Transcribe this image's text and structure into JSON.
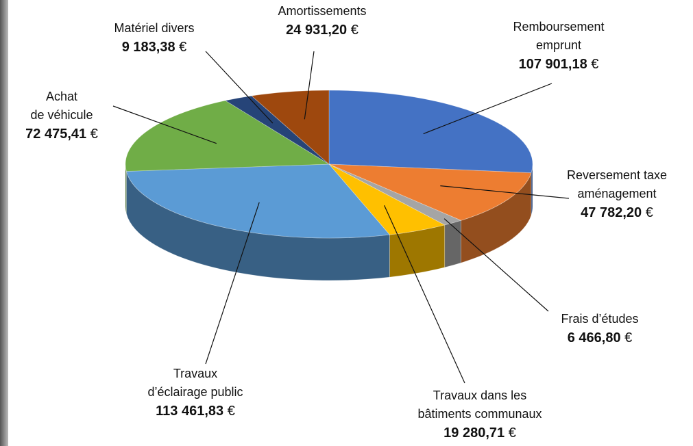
{
  "chart_data": {
    "type": "pie3d",
    "categories": [
      "Remboursement\nemprunt",
      "Reversement taxe\naménagement",
      "Frais d’études",
      "Travaux dans les\nbâtiments communaux",
      "Travaux\nd’éclairage public",
      "Achat\nde véhicule",
      "Matériel divers",
      "Amortissements"
    ],
    "values": [
      107901.18,
      47782.2,
      6466.8,
      19280.71,
      113461.83,
      72475.41,
      9183.38,
      24931.2
    ],
    "value_labels": [
      "107 901,18 €",
      "47 782,20 €",
      "6 466,80 €",
      "19 280,71 €",
      "113 461,83 €",
      "72 475,41 €",
      "9 183,38 €",
      "24 931,20 €"
    ],
    "colors": [
      "#4472c4",
      "#ed7d31",
      "#a5a5a5",
      "#ffc000",
      "#5b9bd5",
      "#70ad47",
      "#264478",
      "#9e480e"
    ]
  }
}
